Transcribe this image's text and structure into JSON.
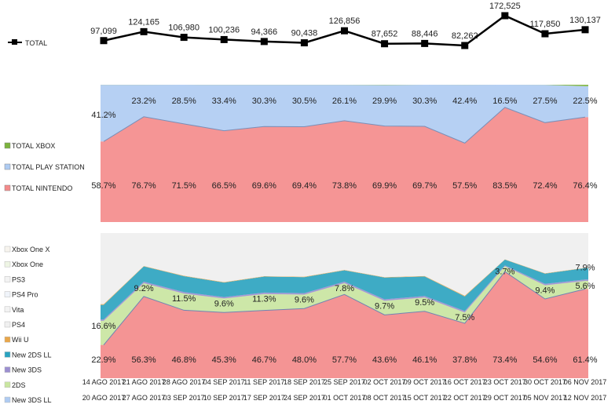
{
  "chart_data": [
    {
      "type": "line",
      "title": "",
      "series": [
        {
          "name": "TOTAL",
          "color": "#000000",
          "values": [
            97099,
            124165,
            106980,
            100236,
            94366,
            90438,
            126856,
            87652,
            88446,
            82262,
            172525,
            117850,
            130137
          ]
        }
      ],
      "value_labels": [
        "97,099",
        "124,165",
        "106,980",
        "100,236",
        "94,366",
        "90,438",
        "126,856",
        "87,652",
        "88,446",
        "82,262",
        "172,525",
        "117,850",
        "130,137"
      ],
      "legend": "left"
    },
    {
      "type": "area",
      "stacked": "percent",
      "series": [
        {
          "name": "TOTAL NINTENDO",
          "color": "#f48a8a",
          "values": [
            58.7,
            76.7,
            71.5,
            66.5,
            69.6,
            69.4,
            73.8,
            69.9,
            69.7,
            57.5,
            83.5,
            72.4,
            76.4
          ]
        },
        {
          "name": "TOTAL PLAY STATION",
          "color": "#aecbf2",
          "values": [
            41.2,
            23.2,
            28.5,
            33.4,
            30.3,
            30.5,
            26.1,
            29.9,
            30.3,
            42.4,
            16.5,
            27.5,
            22.5
          ]
        },
        {
          "name": "TOTAL XBOX",
          "color": "#7bb33c",
          "values": [
            0.1,
            0.1,
            0.0,
            0.1,
            0.1,
            0.1,
            0.1,
            0.2,
            0.0,
            0.1,
            0.0,
            0.1,
            1.1
          ]
        }
      ],
      "label_texts": {
        "TOTAL NINTENDO": [
          "58.7%",
          "76.7%",
          "71.5%",
          "66.5%",
          "69.6%",
          "69.4%",
          "73.8%",
          "69.9%",
          "69.7%",
          "57.5%",
          "83.5%",
          "72.4%",
          "76.4%"
        ],
        "TOTAL PLAY STATION": [
          "41.2%",
          "23.2%",
          "28.5%",
          "33.4%",
          "30.3%",
          "30.5%",
          "26.1%",
          "29.9%",
          "30.3%",
          "42.4%",
          "16.5%",
          "27.5%",
          "22.5%"
        ]
      },
      "legend": "left",
      "ylim": [
        0,
        100
      ]
    },
    {
      "type": "area",
      "stacked": "percent",
      "categories_top": [
        "14 AGO 2017",
        "21 AGO 2017",
        "28 AGO 2017",
        "04 SEP 2017",
        "11 SEP 2017",
        "18 SEP 2017",
        "25 SEP 2017",
        "02 OCT 2017",
        "09 OCT 2017",
        "16 OCT 2017",
        "23 OCT 2017",
        "30 OCT 2017",
        "06 NOV 2017"
      ],
      "categories_bottom": [
        "20 AGO 2017",
        "27 AGO 2017",
        "03 SEP 2017",
        "10 SEP 2017",
        "17 SEP 2017",
        "24 SEP 2017",
        "01 OCT 2017",
        "08 OCT 2017",
        "15 OCT 2017",
        "22 OCT 2017",
        "29 OCT 2017",
        "05 NOV 2017",
        "12 NOV 2017"
      ],
      "series": [
        {
          "name": "New 3DS LL",
          "color": "#f48a8a",
          "values": [
            22.9,
            56.3,
            46.8,
            45.3,
            46.7,
            48.0,
            57.7,
            43.6,
            46.1,
            37.8,
            73.4,
            54.6,
            61.4
          ]
        },
        {
          "name": "2DS",
          "color": "#c9e6a0",
          "values": [
            16.6,
            9.2,
            11.5,
            9.6,
            11.3,
            9.6,
            7.8,
            9.7,
            9.5,
            7.5,
            3.7,
            9.4,
            5.6
          ]
        },
        {
          "name": "New 3DS",
          "color": "#9b8fd0",
          "values": [
            1.0,
            1.0,
            1.0,
            1.0,
            1.0,
            1.0,
            1.0,
            1.0,
            1.0,
            1.0,
            0.6,
            1.0,
            1.0
          ]
        },
        {
          "name": "New 2DS LL",
          "color": "#2aa3c0",
          "values": [
            10.0,
            10.5,
            11.0,
            10.0,
            11.0,
            11.0,
            7.8,
            15.0,
            13.5,
            10.0,
            4.0,
            7.0,
            7.9
          ]
        },
        {
          "name": "Wii U",
          "color": "#e8a64a",
          "values": [
            0.5,
            0.3,
            0.3,
            0.3,
            0.3,
            0.3,
            0.3,
            0.3,
            0.3,
            0.5,
            0.2,
            0.3,
            0.2
          ]
        },
        {
          "name": "PS4",
          "color": "#f0f0f0",
          "values": [
            49.0,
            22.7,
            29.4,
            33.8,
            29.7,
            30.1,
            25.4,
            30.4,
            29.6,
            43.2,
            18.1,
            27.7,
            23.9
          ]
        }
      ],
      "legend_entries": [
        "Xbox One X",
        "Xbox One",
        "PS3",
        "PS4 Pro",
        "Vita",
        "PS4",
        "Wii U",
        "New 2DS LL",
        "New 3DS",
        "2DS",
        "New 3DS LL"
      ],
      "legend_colors": [
        "#f7f4ee",
        "#eef5e4",
        "#f3f3f3",
        "#f0f4fa",
        "#f3f3f3",
        "#f0f0f0",
        "#e8a64a",
        "#2aa3c0",
        "#9b8fd0",
        "#c9e6a0",
        "#aecbf2"
      ],
      "label_texts": {
        "New 3DS LL": [
          "22.9%",
          "56.3%",
          "46.8%",
          "45.3%",
          "46.7%",
          "48.0%",
          "57.7%",
          "43.6%",
          "46.1%",
          "37.8%",
          "73.4%",
          "54.6%",
          "61.4%"
        ],
        "2DS": [
          "16.6%",
          "9.2%",
          "11.5%",
          "9.6%",
          "11.3%",
          "9.6%",
          "7.8%",
          "9.7%",
          "9.5%",
          "7.5%",
          "3.7%",
          "9.4%",
          "5.6%"
        ],
        "New 2DS LL": [
          "",
          "",
          "",
          "",
          "",
          "",
          "",
          "",
          "",
          "",
          "",
          "",
          "7.9%"
        ]
      },
      "ylim": [
        0,
        100
      ]
    }
  ]
}
